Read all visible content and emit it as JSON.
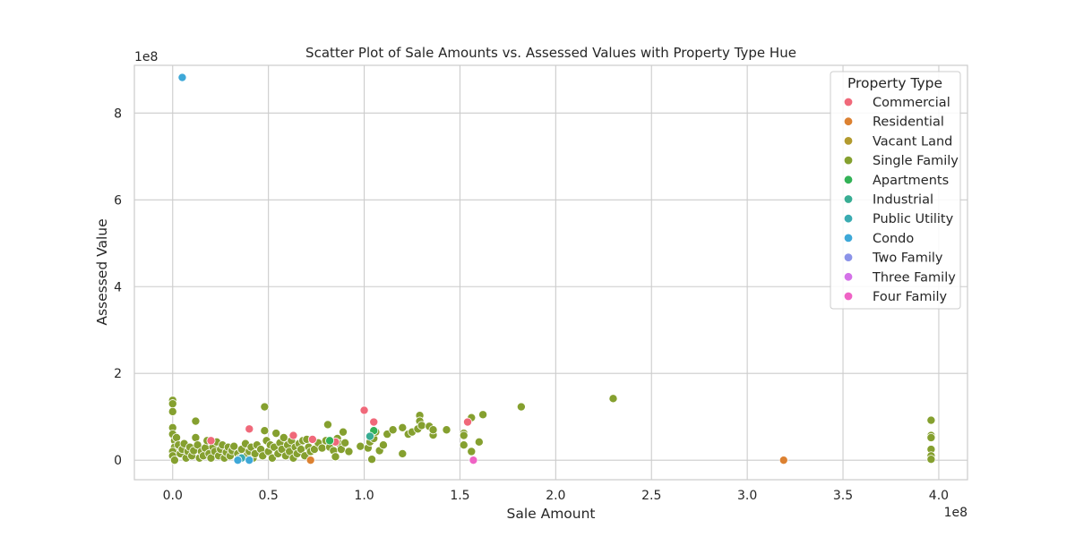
{
  "chart_data": {
    "type": "scatter",
    "title": "Scatter Plot of Sale Amounts vs. Assessed Values with Property Type Hue",
    "xlabel": "Sale Amount",
    "ylabel": "Assessed Value",
    "x_offset_label": "1e8",
    "y_offset_label": "1e8",
    "x_scale": 100000000,
    "y_scale": 100000000,
    "xlim": [
      -0.2,
      4.15
    ],
    "ylim": [
      -0.45,
      9.1
    ],
    "x_ticks": [
      0.0,
      0.5,
      1.0,
      1.5,
      2.0,
      2.5,
      3.0,
      3.5,
      4.0
    ],
    "x_tick_labels": [
      "0.0",
      "0.5",
      "1.0",
      "1.5",
      "2.0",
      "2.5",
      "3.0",
      "3.5",
      "4.0"
    ],
    "y_ticks": [
      0,
      2,
      4,
      6,
      8
    ],
    "y_tick_labels": [
      "0",
      "2",
      "4",
      "6",
      "8"
    ],
    "grid": true,
    "legend": {
      "title": "Property Type",
      "placement": "top-right",
      "entries": [
        {
          "name": "Commercial",
          "color": "#f0697a"
        },
        {
          "name": "Residential",
          "color": "#dc8131"
        },
        {
          "name": "Vacant Land",
          "color": "#b29a2e"
        },
        {
          "name": "Single Family",
          "color": "#85a02f"
        },
        {
          "name": "Apartments",
          "color": "#33b257"
        },
        {
          "name": "Industrial",
          "color": "#38ad93"
        },
        {
          "name": "Public Utility",
          "color": "#3aabb1"
        },
        {
          "name": "Condo",
          "color": "#3ea8d8"
        },
        {
          "name": "Two Family",
          "color": "#8b93e8"
        },
        {
          "name": "Three Family",
          "color": "#d472e8"
        },
        {
          "name": "Four Family",
          "color": "#ef63c5"
        }
      ]
    },
    "series": [
      {
        "name": "Single Family",
        "points": [
          [
            0.0,
            1.38
          ],
          [
            0.0,
            1.3
          ],
          [
            0.0,
            1.12
          ],
          [
            0.0,
            0.75
          ],
          [
            0.0,
            0.6
          ],
          [
            0.01,
            0.45
          ],
          [
            0.01,
            0.3
          ],
          [
            0.0,
            0.2
          ],
          [
            0.0,
            0.1
          ],
          [
            0.01,
            0.0
          ],
          [
            0.02,
            0.52
          ],
          [
            0.03,
            0.35
          ],
          [
            0.04,
            0.15
          ],
          [
            0.05,
            0.25
          ],
          [
            0.06,
            0.38
          ],
          [
            0.07,
            0.05
          ],
          [
            0.08,
            0.2
          ],
          [
            0.09,
            0.3
          ],
          [
            0.1,
            0.1
          ],
          [
            0.11,
            0.22
          ],
          [
            0.12,
            0.9
          ],
          [
            0.12,
            0.52
          ],
          [
            0.13,
            0.35
          ],
          [
            0.14,
            0.05
          ],
          [
            0.15,
            0.2
          ],
          [
            0.16,
            0.1
          ],
          [
            0.17,
            0.28
          ],
          [
            0.18,
            0.45
          ],
          [
            0.19,
            0.15
          ],
          [
            0.2,
            0.05
          ],
          [
            0.21,
            0.3
          ],
          [
            0.22,
            0.2
          ],
          [
            0.23,
            0.42
          ],
          [
            0.24,
            0.1
          ],
          [
            0.25,
            0.25
          ],
          [
            0.26,
            0.35
          ],
          [
            0.27,
            0.05
          ],
          [
            0.28,
            0.18
          ],
          [
            0.29,
            0.3
          ],
          [
            0.3,
            0.1
          ],
          [
            0.31,
            0.22
          ],
          [
            0.32,
            0.32
          ],
          [
            0.34,
            0.15
          ],
          [
            0.35,
            0.05
          ],
          [
            0.36,
            0.25
          ],
          [
            0.38,
            0.38
          ],
          [
            0.39,
            0.12
          ],
          [
            0.4,
            0.2
          ],
          [
            0.41,
            0.3
          ],
          [
            0.42,
            0.05
          ],
          [
            0.43,
            0.15
          ],
          [
            0.44,
            0.35
          ],
          [
            0.46,
            0.25
          ],
          [
            0.47,
            0.1
          ],
          [
            0.48,
            1.23
          ],
          [
            0.48,
            0.68
          ],
          [
            0.49,
            0.45
          ],
          [
            0.5,
            0.2
          ],
          [
            0.51,
            0.35
          ],
          [
            0.52,
            0.05
          ],
          [
            0.53,
            0.3
          ],
          [
            0.54,
            0.62
          ],
          [
            0.55,
            0.15
          ],
          [
            0.56,
            0.4
          ],
          [
            0.57,
            0.25
          ],
          [
            0.58,
            0.52
          ],
          [
            0.59,
            0.1
          ],
          [
            0.6,
            0.35
          ],
          [
            0.61,
            0.2
          ],
          [
            0.62,
            0.45
          ],
          [
            0.63,
            0.05
          ],
          [
            0.64,
            0.3
          ],
          [
            0.65,
            0.15
          ],
          [
            0.66,
            0.38
          ],
          [
            0.67,
            0.25
          ],
          [
            0.68,
            0.45
          ],
          [
            0.69,
            0.1
          ],
          [
            0.7,
            0.48
          ],
          [
            0.71,
            0.3
          ],
          [
            0.72,
            0.2
          ],
          [
            0.74,
            0.25
          ],
          [
            0.76,
            0.4
          ],
          [
            0.78,
            0.28
          ],
          [
            0.8,
            0.45
          ],
          [
            0.81,
            0.82
          ],
          [
            0.82,
            0.3
          ],
          [
            0.84,
            0.22
          ],
          [
            0.85,
            0.08
          ],
          [
            0.86,
            0.5
          ],
          [
            0.87,
            0.38
          ],
          [
            0.88,
            0.25
          ],
          [
            0.89,
            0.65
          ],
          [
            0.9,
            0.4
          ],
          [
            0.92,
            0.2
          ],
          [
            0.98,
            0.32
          ],
          [
            1.02,
            0.28
          ],
          [
            1.03,
            0.42
          ],
          [
            1.04,
            0.02
          ],
          [
            1.05,
            0.5
          ],
          [
            1.06,
            0.65
          ],
          [
            1.08,
            0.22
          ],
          [
            1.1,
            0.35
          ],
          [
            1.12,
            0.6
          ],
          [
            1.15,
            0.7
          ],
          [
            1.2,
            0.15
          ],
          [
            1.2,
            0.75
          ],
          [
            1.23,
            0.6
          ],
          [
            1.25,
            0.65
          ],
          [
            1.28,
            0.72
          ],
          [
            1.29,
            1.03
          ],
          [
            1.29,
            0.9
          ],
          [
            1.3,
            0.8
          ],
          [
            1.34,
            0.78
          ],
          [
            1.36,
            0.58
          ],
          [
            1.36,
            0.7
          ],
          [
            1.43,
            0.7
          ],
          [
            1.52,
            0.35
          ],
          [
            1.52,
            0.62
          ],
          [
            1.52,
            0.57
          ],
          [
            1.56,
            0.2
          ],
          [
            1.56,
            0.98
          ],
          [
            1.6,
            0.42
          ],
          [
            1.62,
            1.05
          ],
          [
            1.82,
            1.23
          ],
          [
            2.3,
            1.42
          ],
          [
            3.96,
            0.92
          ],
          [
            3.96,
            0.57
          ],
          [
            3.96,
            0.52
          ],
          [
            3.96,
            0.25
          ],
          [
            3.96,
            0.1
          ],
          [
            3.96,
            0.02
          ]
        ]
      },
      {
        "name": "Commercial",
        "points": [
          [
            0.2,
            0.45
          ],
          [
            0.4,
            0.72
          ],
          [
            0.63,
            0.57
          ],
          [
            0.73,
            0.48
          ],
          [
            0.85,
            0.42
          ],
          [
            1.0,
            1.15
          ],
          [
            1.05,
            0.88
          ],
          [
            1.54,
            0.88
          ]
        ]
      },
      {
        "name": "Residential",
        "points": [
          [
            0.72,
            0.0
          ],
          [
            3.19,
            0.0
          ]
        ]
      },
      {
        "name": "Apartments",
        "points": [
          [
            0.82,
            0.45
          ],
          [
            1.05,
            0.68
          ]
        ]
      },
      {
        "name": "Industrial",
        "points": [
          [
            1.03,
            0.55
          ]
        ]
      },
      {
        "name": "Public Utility",
        "points": [
          [
            0.36,
            0.05
          ]
        ]
      },
      {
        "name": "Condo",
        "points": [
          [
            0.05,
            8.82
          ],
          [
            0.34,
            0.0
          ],
          [
            0.4,
            0.0
          ]
        ]
      },
      {
        "name": "Four Family",
        "points": [
          [
            1.57,
            0.0
          ]
        ]
      }
    ]
  }
}
